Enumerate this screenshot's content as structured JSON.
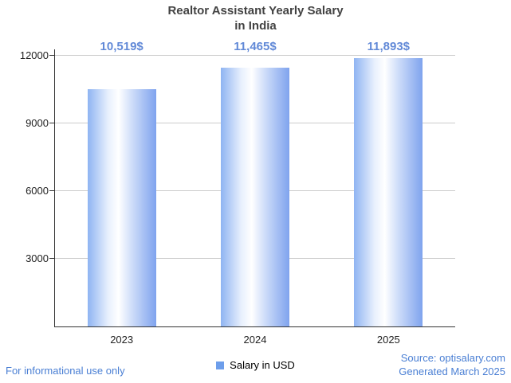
{
  "title": {
    "line1": "Realtor Assistant Yearly Salary",
    "line2": "in India"
  },
  "chart_data": {
    "type": "bar",
    "title": "Realtor Assistant Yearly Salary in India",
    "categories": [
      "2023",
      "2024",
      "2025"
    ],
    "values": [
      10519,
      11465,
      11893
    ],
    "value_labels": [
      "10,519$",
      "11,465$",
      "11,893$"
    ],
    "series_name": "Salary in USD",
    "xlabel": "",
    "ylabel": "",
    "ylim": [
      0,
      12000
    ],
    "yticks": [
      3000,
      6000,
      9000,
      12000
    ],
    "grid": true,
    "legend_position": "bottom"
  },
  "legend": {
    "label": "Salary in USD"
  },
  "footer": {
    "left": "For informational use only",
    "source": "Source: optisalary.com",
    "generated": "Generated March 2025"
  },
  "colors": {
    "annotation": "#6189d7",
    "footer_link": "#4a7fd4",
    "legend_swatch": "#6d9eeb",
    "bar_left": "#8fb4f2",
    "bar_mid": "#ffffff",
    "bar_right": "#7fa3ee",
    "gridline": "#cccccc",
    "axis": "#333333",
    "title_text": "#424242"
  }
}
